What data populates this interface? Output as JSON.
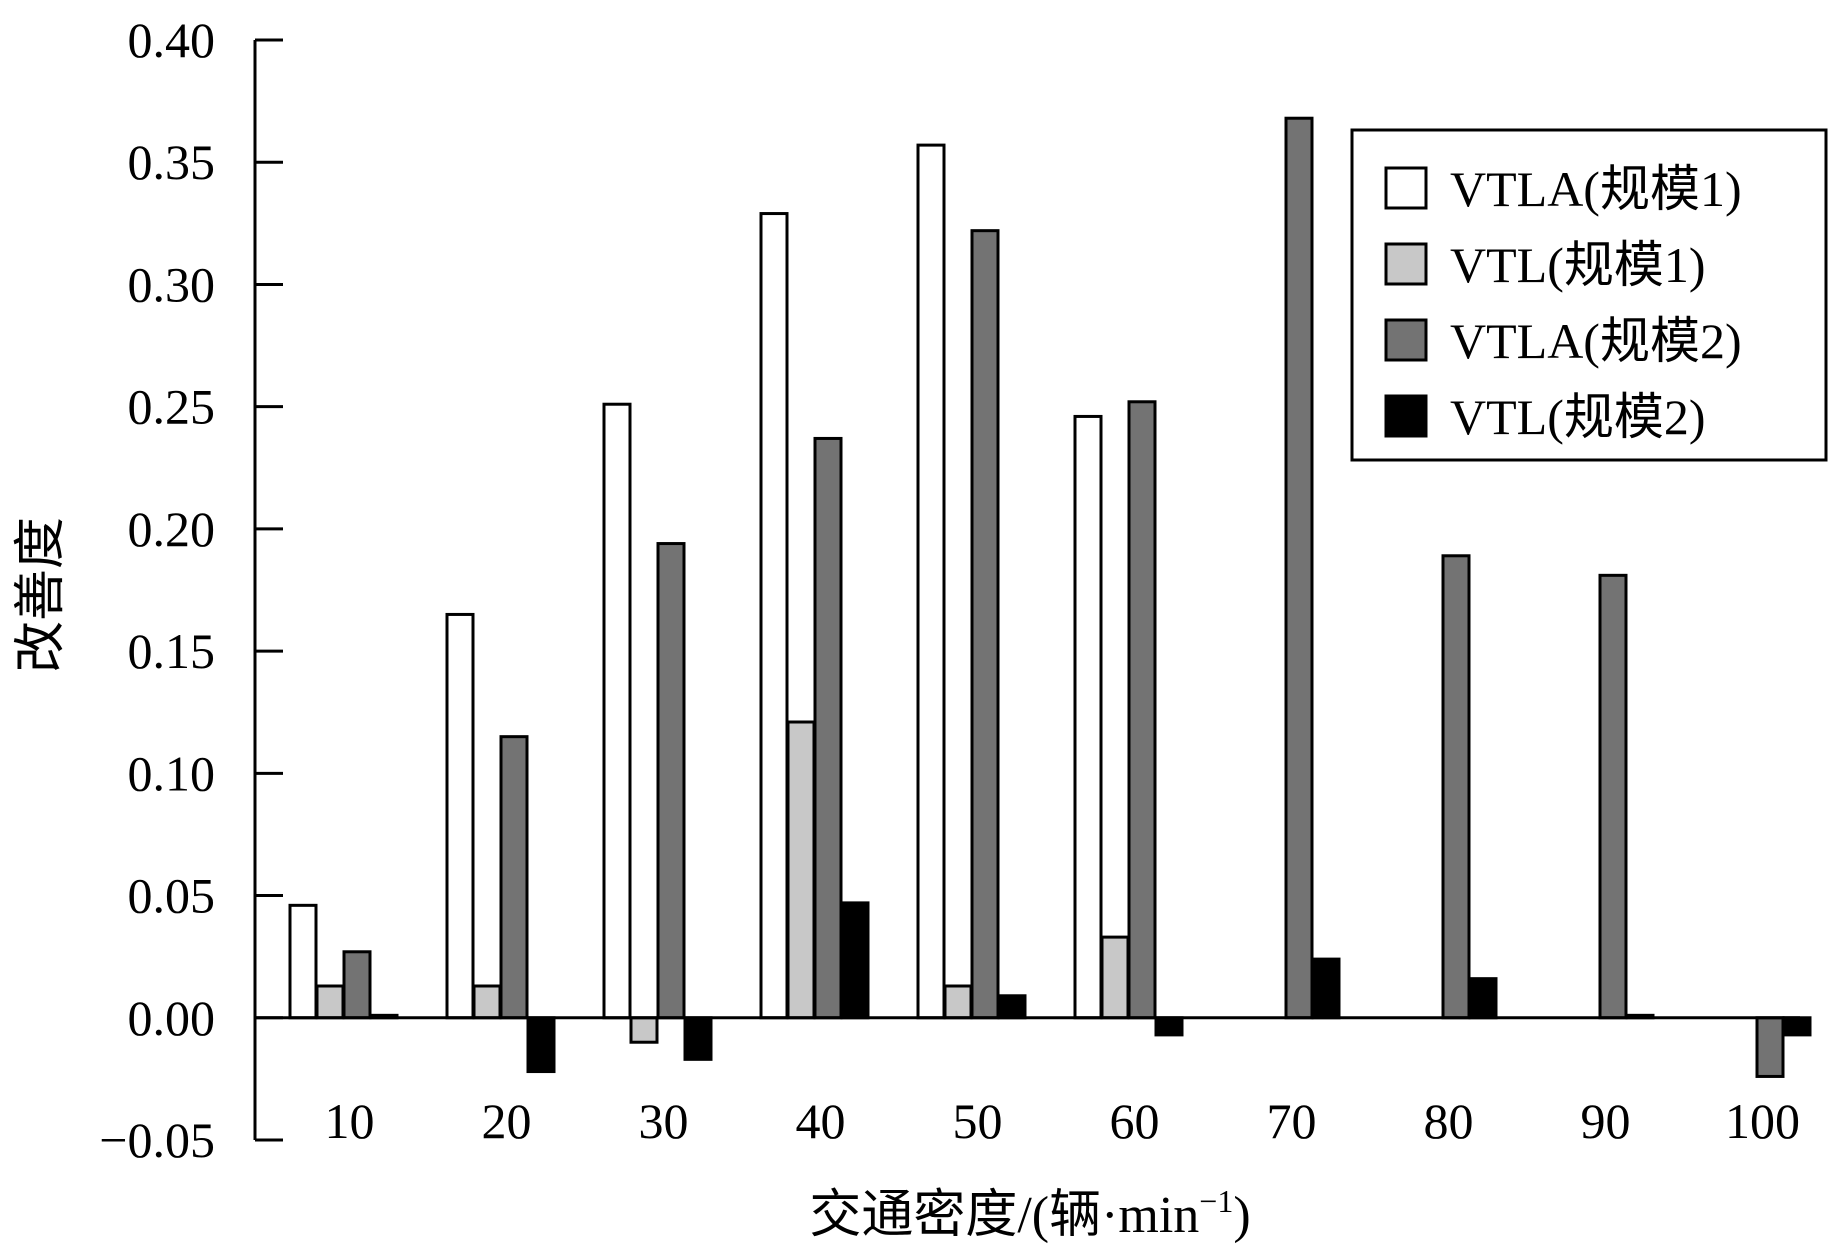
{
  "chart_data": {
    "type": "bar",
    "title": "",
    "xlabel": "交通密度/(辆·min",
    "xlabel_sup": "−1",
    "xlabel_close": ")",
    "ylabel": "改善度",
    "ylim": [
      -0.05,
      0.4
    ],
    "yticks": [
      "−0.05",
      "0.00",
      "0.05",
      "0.10",
      "0.15",
      "0.20",
      "0.25",
      "0.30",
      "0.35",
      "0.40"
    ],
    "ytick_values": [
      -0.05,
      0.0,
      0.05,
      0.1,
      0.15,
      0.2,
      0.25,
      0.3,
      0.35,
      0.4
    ],
    "categories": [
      "10",
      "20",
      "30",
      "40",
      "50",
      "60",
      "70",
      "80",
      "90",
      "100"
    ],
    "legend_position": "top-right",
    "grid": false,
    "series": [
      {
        "name": "VTLA(规模1)",
        "color": "#ffffff",
        "values": [
          0.046,
          0.165,
          0.251,
          0.329,
          0.357,
          0.246,
          null,
          null,
          null,
          null
        ]
      },
      {
        "name": "VTL(规模1)",
        "color": "#c8c8c8",
        "values": [
          0.013,
          0.013,
          -0.01,
          0.121,
          0.013,
          0.033,
          null,
          null,
          null,
          null
        ]
      },
      {
        "name": "VTLA(规模2)",
        "color": "#737373",
        "values": [
          0.027,
          0.115,
          0.194,
          0.237,
          0.322,
          0.252,
          0.368,
          0.189,
          0.181,
          -0.024
        ]
      },
      {
        "name": "VTL(规模2)",
        "color": "#000000",
        "values": [
          0.001,
          -0.022,
          -0.017,
          0.047,
          0.009,
          -0.007,
          0.024,
          0.016,
          0.001,
          -0.007
        ]
      }
    ]
  }
}
